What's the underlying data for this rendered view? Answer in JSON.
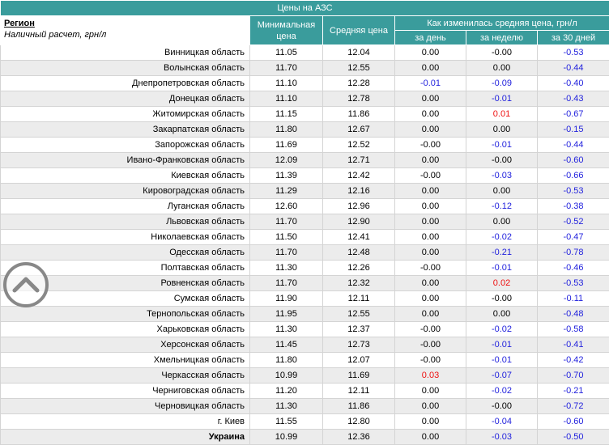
{
  "header": {
    "title": "Цены на АЗС",
    "region": "Регион",
    "subtitle": "Наличный расчет, грн/л",
    "columns": [
      "Минимальная цена",
      "Средняя цена"
    ],
    "group": "Как изменилась средняя цена, грн/л",
    "subcolumns": [
      "за день",
      "за неделю",
      "за 30 дней"
    ]
  },
  "table": {
    "rows": [
      [
        "Винницкая область",
        "11.05",
        "12.04",
        "0.00",
        "-0.00",
        "-0.53"
      ],
      [
        "Волынская область",
        "11.70",
        "12.55",
        "0.00",
        "0.00",
        "-0.44"
      ],
      [
        "Днепропетровская область",
        "11.10",
        "12.28",
        "-0.01",
        "-0.09",
        "-0.40"
      ],
      [
        "Донецкая область",
        "11.10",
        "12.78",
        "0.00",
        "-0.01",
        "-0.43"
      ],
      [
        "Житомирская область",
        "11.15",
        "11.86",
        "0.00",
        "0.01",
        "-0.67"
      ],
      [
        "Закарпатская область",
        "11.80",
        "12.67",
        "0.00",
        "0.00",
        "-0.15"
      ],
      [
        "Запорожская область",
        "11.69",
        "12.52",
        "-0.00",
        "-0.01",
        "-0.44"
      ],
      [
        "Ивано-Франковская область",
        "12.09",
        "12.71",
        "0.00",
        "-0.00",
        "-0.60"
      ],
      [
        "Киевская область",
        "11.39",
        "12.42",
        "-0.00",
        "-0.03",
        "-0.66"
      ],
      [
        "Кировоградская область",
        "11.29",
        "12.16",
        "0.00",
        "0.00",
        "-0.53"
      ],
      [
        "Луганская область",
        "12.60",
        "12.96",
        "0.00",
        "-0.12",
        "-0.38"
      ],
      [
        "Львовская область",
        "11.70",
        "12.90",
        "0.00",
        "0.00",
        "-0.52"
      ],
      [
        "Николаевская область",
        "11.50",
        "12.41",
        "0.00",
        "-0.02",
        "-0.47"
      ],
      [
        "Одесская область",
        "11.70",
        "12.48",
        "0.00",
        "-0.21",
        "-0.78"
      ],
      [
        "Полтавская область",
        "11.30",
        "12.26",
        "-0.00",
        "-0.01",
        "-0.46"
      ],
      [
        "Ровненская область",
        "11.70",
        "12.32",
        "0.00",
        "0.02",
        "-0.53"
      ],
      [
        "Сумская область",
        "11.90",
        "12.11",
        "0.00",
        "-0.00",
        "-0.11"
      ],
      [
        "Тернопольская область",
        "11.95",
        "12.55",
        "0.00",
        "0.00",
        "-0.48"
      ],
      [
        "Харьковская область",
        "11.30",
        "12.37",
        "-0.00",
        "-0.02",
        "-0.58"
      ],
      [
        "Херсонская область",
        "11.45",
        "12.73",
        "-0.00",
        "-0.01",
        "-0.41"
      ],
      [
        "Хмельницкая область",
        "11.80",
        "12.07",
        "-0.00",
        "-0.01",
        "-0.42"
      ],
      [
        "Черкасская область",
        "10.99",
        "11.69",
        "0.03",
        "-0.07",
        "-0.70"
      ],
      [
        "Черниговская область",
        "11.20",
        "12.11",
        "0.00",
        "-0.02",
        "-0.21"
      ],
      [
        "Черновицкая область",
        "11.30",
        "11.86",
        "0.00",
        "-0.00",
        "-0.72"
      ],
      [
        "г. Киев",
        "11.55",
        "12.80",
        "0.00",
        "-0.04",
        "-0.60"
      ],
      [
        "Украина",
        "10.99",
        "12.36",
        "0.00",
        "-0.03",
        "-0.50"
      ]
    ]
  }
}
